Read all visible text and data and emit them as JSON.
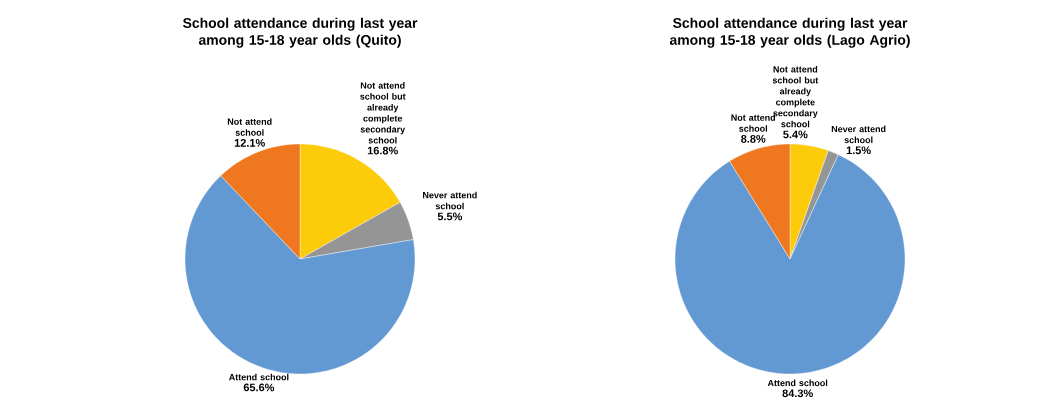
{
  "chart_data": [
    {
      "type": "pie",
      "title": "School attendance during last year among 15-18 year olds (Quito)",
      "categories": [
        "Not attend school but already complete secondary school",
        "Never attend school",
        "Attend school",
        "Not attend school"
      ],
      "values": [
        16.8,
        5.5,
        65.6,
        12.1
      ],
      "value_labels": [
        "16.8%",
        "5.5%",
        "65.6%",
        "12.1%"
      ],
      "colors": [
        "#fccc0a",
        "#959595",
        "#6399d2",
        "#ef771f"
      ]
    },
    {
      "type": "pie",
      "title": "School attendance during last year among 15-18 year olds (Lago Agrio)",
      "categories": [
        "Not attend school but already complete secondary school",
        "Never attend school",
        "Attend school",
        "Not attend school"
      ],
      "values": [
        5.4,
        1.5,
        84.3,
        8.8
      ],
      "value_labels": [
        "5.4%",
        "1.5%",
        "84.3%",
        "8.8%"
      ],
      "colors": [
        "#fccc0a",
        "#959595",
        "#6399d2",
        "#ef771f"
      ]
    }
  ]
}
